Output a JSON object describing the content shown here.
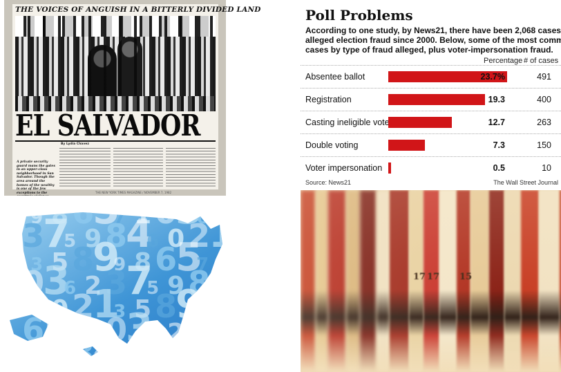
{
  "magazine": {
    "kicker": "THE VOICES OF ANGUISH IN A BITTERLY DIVIDED LAND",
    "title": "EL SALVADOR",
    "byline": "By Lydia Chavez",
    "pull_quote": "A private security guard mans the gates in an upper-class neighborhood in San Salvador. Though the area around the homes of the wealthy is one of the few exceptions to the country's violence.",
    "footer": "THE NEW YORK TIMES MAGAZINE / NOVEMBER 7, 1982"
  },
  "wsj_chart": {
    "title": "Poll Problems",
    "subtitle_lines": [
      "According to one study, by News21, there have been 2,068 cases of",
      "alleged election fraud since 2000. Below, some of the most common",
      "cases by type of fraud alleged, plus voter-impersonation fraud."
    ],
    "col_percentage": "Percentage",
    "col_cases": "# of cases",
    "source": "Source: News21",
    "credit": "The Wall Street Journal",
    "bar_color": "#d11518"
  },
  "chart_data": {
    "type": "bar",
    "categories": [
      "Absentee ballot",
      "Registration",
      "Casting ineligible vote",
      "Double voting",
      "Voter impersonation"
    ],
    "values": [
      23.7,
      19.3,
      12.7,
      7.3,
      0.5
    ],
    "value_labels": [
      "23.7%",
      "19.3",
      "12.7",
      "7.3",
      "0.5"
    ],
    "cases": [
      491,
      400,
      263,
      150,
      10
    ],
    "title": "Poll Problems",
    "xlabel": "",
    "ylabel": "",
    "xlim": [
      0,
      23.7
    ]
  },
  "map": {
    "colors": {
      "light": "#bfe3f6",
      "mid": "#5aa7dd",
      "dark": "#1a5fb0"
    },
    "digits": [
      "9",
      "8",
      "6",
      "5",
      "7",
      "1",
      "0",
      "3",
      "6",
      "2",
      "3",
      "7",
      "5",
      "9",
      "8",
      "4",
      "6",
      "0",
      "2",
      "1",
      "3",
      "5",
      "8",
      "9"
    ]
  },
  "books": {
    "spine_colors": [
      "#c23a1e",
      "#e3c48a",
      "#b3271a",
      "#d9b479",
      "#7a1b12",
      "#efe0c0",
      "#a12a1c",
      "#e8d1a0",
      "#c8342a",
      "#f3e6c9",
      "#b0301f",
      "#e6c996",
      "#8a2015",
      "#ecd8b0",
      "#c73c22",
      "#f1e2c2"
    ],
    "spine_numbers": [
      "17",
      "17",
      "15"
    ]
  }
}
